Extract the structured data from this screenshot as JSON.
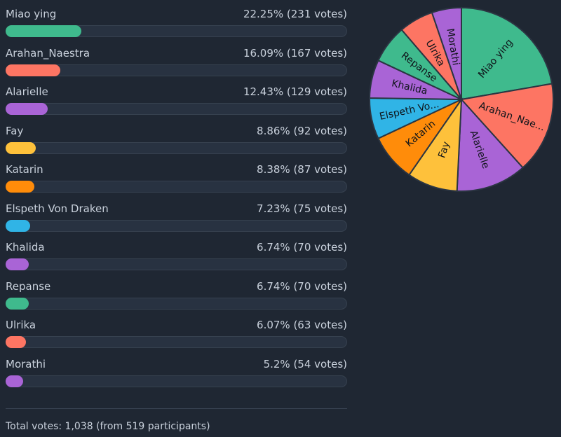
{
  "chart_data": {
    "type": "bar",
    "categories": [
      "Miao ying",
      "Arahan_Naestra",
      "Alarielle",
      "Fay",
      "Katarin",
      "Elspeth Von Draken",
      "Khalida",
      "Repanse",
      "Ulrika",
      "Morathi"
    ],
    "series": [
      {
        "values": [
          22.25,
          16.09,
          12.43,
          8.86,
          8.38,
          7.23,
          6.74,
          6.74,
          6.07,
          5.2
        ]
      }
    ],
    "items": [
      {
        "name": "Miao ying",
        "stat": "22.25% (231 votes)",
        "percent": 22.25,
        "votes": 231,
        "color": "#3fba8d",
        "pie_label": "Miao ying"
      },
      {
        "name": "Arahan_Naestra",
        "stat": "16.09% (167 votes)",
        "percent": 16.09,
        "votes": 167,
        "color": "#fd7563",
        "pie_label": "Arahan_Nae..."
      },
      {
        "name": "Alarielle",
        "stat": "12.43% (129 votes)",
        "percent": 12.43,
        "votes": 129,
        "color": "#a964d6",
        "pie_label": "Alarielle"
      },
      {
        "name": "Fay",
        "stat": "8.86% (92 votes)",
        "percent": 8.86,
        "votes": 92,
        "color": "#fec13b",
        "pie_label": "Fay"
      },
      {
        "name": "Katarin",
        "stat": "8.38% (87 votes)",
        "percent": 8.38,
        "votes": 87,
        "color": "#ff8c0a",
        "pie_label": "Katarin"
      },
      {
        "name": "Elspeth Von Draken",
        "stat": "7.23% (75 votes)",
        "percent": 7.23,
        "votes": 75,
        "color": "#30b4e6",
        "pie_label": "Elspeth Vo..."
      },
      {
        "name": "Khalida",
        "stat": "6.74% (70 votes)",
        "percent": 6.74,
        "votes": 70,
        "color": "#a964d6",
        "pie_label": "Khalida"
      },
      {
        "name": "Repanse",
        "stat": "6.74% (70 votes)",
        "percent": 6.74,
        "votes": 70,
        "color": "#3fba8d",
        "pie_label": "Repanse"
      },
      {
        "name": "Ulrika",
        "stat": "6.07% (63 votes)",
        "percent": 6.07,
        "votes": 63,
        "color": "#fd7563",
        "pie_label": "Ulrika"
      },
      {
        "name": "Morathi",
        "stat": "5.2% (54 votes)",
        "percent": 5.2,
        "votes": 54,
        "color": "#a964d6",
        "pie_label": "Morathi"
      }
    ],
    "total_text": "Total votes: 1,038 (from 519 participants)",
    "total_votes": 1038,
    "participants": 519,
    "ylim": [
      0,
      100
    ]
  }
}
